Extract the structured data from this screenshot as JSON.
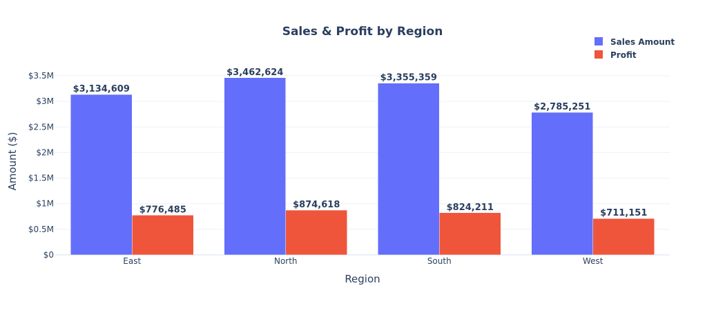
{
  "chart_data": {
    "type": "bar",
    "title": "Sales & Profit by Region",
    "xlabel": "Region",
    "ylabel": "Amount ($)",
    "categories": [
      "East",
      "North",
      "South",
      "West"
    ],
    "series": [
      {
        "name": "Sales Amount",
        "color": "#636efa",
        "values": [
          3134609,
          3462624,
          3355359,
          2785251
        ],
        "labels": [
          "$3,134,609",
          "$3,462,624",
          "$3,355,359",
          "$2,785,251"
        ]
      },
      {
        "name": "Profit",
        "color": "#ef553b",
        "values": [
          776485,
          874618,
          824211,
          711151
        ],
        "labels": [
          "$776,485",
          "$874,618",
          "$824,211",
          "$711,151"
        ]
      }
    ],
    "ylim": [
      0,
      3500000
    ],
    "yticks": [
      0,
      500000,
      1000000,
      1500000,
      2000000,
      2500000,
      3000000,
      3500000
    ],
    "ytick_labels": [
      "$0",
      "$0.5M",
      "$1M",
      "$1.5M",
      "$2M",
      "$2.5M",
      "$3M",
      "$3.5M"
    ],
    "grid": true,
    "legend": "top-right",
    "barmode": "group"
  }
}
